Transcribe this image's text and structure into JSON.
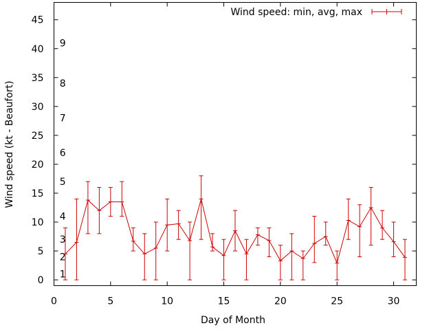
{
  "chart_data": {
    "type": "line",
    "xlabel": "Day of Month",
    "ylabel": "Wind speed (kt - Beaufort)",
    "xlim": [
      0,
      32
    ],
    "ylim": [
      -1,
      48
    ],
    "x_ticks": [
      0,
      5,
      10,
      15,
      20,
      25,
      30
    ],
    "y_ticks": [
      0,
      5,
      10,
      15,
      20,
      25,
      30,
      35,
      40,
      45
    ],
    "grid": false,
    "legend_position": "top-right",
    "beaufort_scale": [
      {
        "label": "1",
        "y": 1
      },
      {
        "label": "2",
        "y": 4
      },
      {
        "label": "3",
        "y": 7
      },
      {
        "label": "4",
        "y": 11
      },
      {
        "label": "5",
        "y": 17
      },
      {
        "label": "6",
        "y": 22
      },
      {
        "label": "7",
        "y": 28
      },
      {
        "label": "8",
        "y": 34
      },
      {
        "label": "9",
        "y": 41
      }
    ],
    "series": [
      {
        "name": "Wind speed: min, avg, max",
        "color": "#cc0000",
        "x": [
          1,
          2,
          3,
          4,
          5,
          6,
          7,
          8,
          9,
          10,
          11,
          12,
          13,
          14,
          15,
          16,
          17,
          18,
          19,
          20,
          21,
          22,
          23,
          24,
          25,
          26,
          27,
          28,
          29,
          30,
          31
        ],
        "avg": [
          4.5,
          6.5,
          13.8,
          12,
          13.5,
          13.5,
          6.7,
          4.5,
          5.5,
          9.5,
          9.7,
          6.8,
          14,
          5.7,
          4.2,
          8.5,
          4.5,
          7.8,
          6.8,
          3.3,
          5,
          3.7,
          6.3,
          7.5,
          2.9,
          10.3,
          9.2,
          12.5,
          9,
          6.6,
          3.9
        ],
        "min": [
          0,
          0,
          8,
          8,
          11,
          11,
          5,
          0,
          0,
          5,
          7,
          0,
          7,
          5,
          0,
          5,
          0,
          6,
          4,
          0,
          0,
          0,
          3,
          6,
          0,
          7,
          4,
          6,
          7,
          4,
          0
        ],
        "max": [
          9,
          14,
          17,
          16,
          16,
          17,
          9,
          8,
          10,
          14,
          12,
          10,
          18,
          8,
          7,
          12,
          7,
          9,
          9,
          6,
          8,
          5,
          11,
          10,
          5,
          14,
          13,
          16,
          12,
          10,
          7
        ]
      }
    ]
  }
}
